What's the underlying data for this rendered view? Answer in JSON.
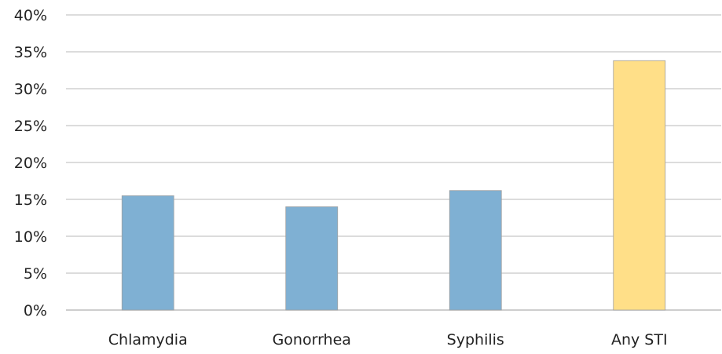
{
  "chart_data": {
    "type": "bar",
    "categories": [
      "Chlamydia",
      "Gonorrhea",
      "Syphilis",
      "Any STI"
    ],
    "values": [
      15.5,
      14.0,
      16.2,
      33.8
    ],
    "value_unit": "%",
    "yticks": [
      "0%",
      "5%",
      "10%",
      "15%",
      "20%",
      "25%",
      "30%",
      "35%",
      "40%"
    ],
    "ylim": [
      0,
      40
    ],
    "grid": true,
    "bar_colors": [
      "#7fb0d3",
      "#7fb0d3",
      "#7fb0d3",
      "#ffdf88"
    ],
    "bar_edge_color": "#a0a0a0",
    "grid_color": "#c8c8c8"
  }
}
